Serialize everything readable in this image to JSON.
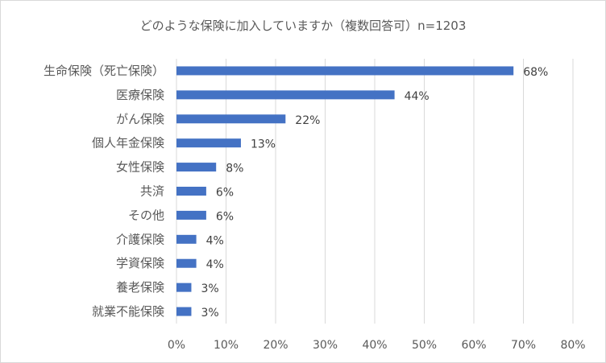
{
  "chart_data": {
    "type": "bar",
    "orientation": "horizontal",
    "title": "どのような保険に加入していますか（複数回答可）n=1203",
    "categories": [
      "生命保険（死亡保険）",
      "医療保険",
      "がん保険",
      "個人年金保険",
      "女性保険",
      "共済",
      "その他",
      "介護保険",
      "学資保険",
      "養老保険",
      "就業不能保険"
    ],
    "values": [
      68,
      44,
      22,
      13,
      8,
      6,
      6,
      4,
      4,
      3,
      3
    ],
    "data_labels": [
      "68%",
      "44%",
      "22%",
      "13%",
      "8%",
      "6%",
      "6%",
      "4%",
      "4%",
      "3%",
      "3%"
    ],
    "x_ticks": [
      0,
      10,
      20,
      30,
      40,
      50,
      60,
      70,
      80
    ],
    "x_tick_labels": [
      "0%",
      "10%",
      "20%",
      "30%",
      "40%",
      "50%",
      "60%",
      "70%",
      "80%"
    ],
    "xlim": [
      0,
      80
    ],
    "xlabel": "",
    "ylabel": "",
    "grid": true,
    "legend": "none",
    "bar_color": "#4472c4",
    "grid_color": "#d9d9d9"
  }
}
